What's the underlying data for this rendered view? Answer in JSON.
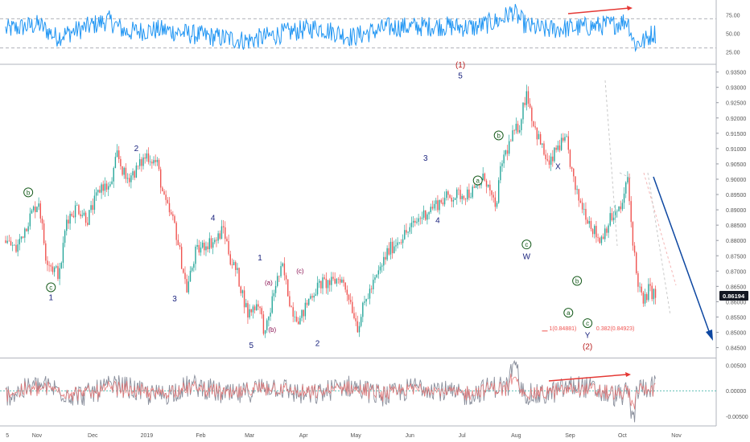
{
  "colors": {
    "rsi": "#2196f3",
    "bull": "#26a69a",
    "bear": "#ef5350",
    "wave_impulse": "#1a237e",
    "wave_corrective": "#1b5e20",
    "wave_minor": "#880e4f",
    "wave_major": "#b71c1c",
    "arrow": "#0d47a1",
    "diverge": "#e53935",
    "grid": "#e0e0e0",
    "axis_text": "#555555",
    "price_badge": "#131722"
  },
  "chart_data": [
    {
      "type": "line",
      "panel": "rsi",
      "y_ticks": [
        "25.00",
        "50.00",
        "75.00"
      ],
      "y_tick_values": [
        25,
        50,
        75
      ],
      "ylim": [
        10,
        90
      ],
      "levels": [
        30,
        70
      ]
    },
    {
      "type": "candlestick",
      "panel": "price",
      "y_ticks": [
        "0.84500",
        "0.85000",
        "0.85500",
        "0.86000",
        "0.86500",
        "0.87000",
        "0.87500",
        "0.88000",
        "0.88500",
        "0.89000",
        "0.89500",
        "0.90000",
        "0.90500",
        "0.91000",
        "0.91500",
        "0.92000",
        "0.92500",
        "0.93000",
        "0.93500"
      ],
      "y_tick_values": [
        0.845,
        0.85,
        0.855,
        0.86,
        0.865,
        0.87,
        0.875,
        0.88,
        0.885,
        0.89,
        0.895,
        0.9,
        0.905,
        0.91,
        0.915,
        0.92,
        0.925,
        0.93,
        0.935
      ],
      "ylim": [
        0.842,
        0.937
      ],
      "last_price": "0.86194",
      "last_price_value": 0.86194,
      "x_ticks": [
        "5",
        "Nov",
        "Dec",
        "2019",
        "Feb",
        "Mar",
        "Apr",
        "May",
        "Jun",
        "Jul",
        "Aug",
        "Sep",
        "Oct",
        "Nov"
      ],
      "x_tick_day": [
        -8,
        9,
        41,
        72,
        103,
        131,
        162,
        192,
        223,
        253,
        284,
        315,
        345,
        376
      ],
      "anchors": [
        {
          "d": -9,
          "p": 0.88
        },
        {
          "d": -3,
          "p": 0.877
        },
        {
          "d": 2,
          "p": 0.884
        },
        {
          "d": 6,
          "p": 0.889
        },
        {
          "d": 10,
          "p": 0.893
        },
        {
          "d": 14,
          "p": 0.875
        },
        {
          "d": 18,
          "p": 0.871
        },
        {
          "d": 22,
          "p": 0.869
        },
        {
          "d": 26,
          "p": 0.887
        },
        {
          "d": 32,
          "p": 0.891
        },
        {
          "d": 38,
          "p": 0.887
        },
        {
          "d": 46,
          "p": 0.898
        },
        {
          "d": 51,
          "p": 0.897
        },
        {
          "d": 55,
          "p": 0.908
        },
        {
          "d": 60,
          "p": 0.9
        },
        {
          "d": 66,
          "p": 0.903
        },
        {
          "d": 72,
          "p": 0.908
        },
        {
          "d": 78,
          "p": 0.905
        },
        {
          "d": 82,
          "p": 0.893
        },
        {
          "d": 88,
          "p": 0.885
        },
        {
          "d": 95,
          "p": 0.864
        },
        {
          "d": 100,
          "p": 0.876
        },
        {
          "d": 106,
          "p": 0.879
        },
        {
          "d": 112,
          "p": 0.88
        },
        {
          "d": 116,
          "p": 0.884
        },
        {
          "d": 120,
          "p": 0.874
        },
        {
          "d": 124,
          "p": 0.869
        },
        {
          "d": 130,
          "p": 0.856
        },
        {
          "d": 136,
          "p": 0.86
        },
        {
          "d": 140,
          "p": 0.849
        },
        {
          "d": 146,
          "p": 0.866
        },
        {
          "d": 150,
          "p": 0.871
        },
        {
          "d": 155,
          "p": 0.858
        },
        {
          "d": 160,
          "p": 0.854
        },
        {
          "d": 166,
          "p": 0.862
        },
        {
          "d": 172,
          "p": 0.866
        },
        {
          "d": 178,
          "p": 0.866
        },
        {
          "d": 183,
          "p": 0.868
        },
        {
          "d": 188,
          "p": 0.862
        },
        {
          "d": 193,
          "p": 0.852
        },
        {
          "d": 198,
          "p": 0.861
        },
        {
          "d": 204,
          "p": 0.868
        },
        {
          "d": 210,
          "p": 0.876
        },
        {
          "d": 216,
          "p": 0.88
        },
        {
          "d": 222,
          "p": 0.883
        },
        {
          "d": 228,
          "p": 0.887
        },
        {
          "d": 236,
          "p": 0.891
        },
        {
          "d": 244,
          "p": 0.894
        },
        {
          "d": 252,
          "p": 0.895
        },
        {
          "d": 260,
          "p": 0.896
        },
        {
          "d": 266,
          "p": 0.901
        },
        {
          "d": 272,
          "p": 0.89
        },
        {
          "d": 276,
          "p": 0.906
        },
        {
          "d": 282,
          "p": 0.914
        },
        {
          "d": 286,
          "p": 0.918
        },
        {
          "d": 290,
          "p": 0.929
        },
        {
          "d": 294,
          "p": 0.918
        },
        {
          "d": 299,
          "p": 0.91
        },
        {
          "d": 303,
          "p": 0.904
        },
        {
          "d": 308,
          "p": 0.911
        },
        {
          "d": 313,
          "p": 0.912
        },
        {
          "d": 318,
          "p": 0.896
        },
        {
          "d": 323,
          "p": 0.89
        },
        {
          "d": 328,
          "p": 0.884
        },
        {
          "d": 332,
          "p": 0.88
        },
        {
          "d": 338,
          "p": 0.887
        },
        {
          "d": 344,
          "p": 0.89
        },
        {
          "d": 348,
          "p": 0.9
        },
        {
          "d": 350,
          "p": 0.886
        },
        {
          "d": 353,
          "p": 0.869
        },
        {
          "d": 357,
          "p": 0.859
        },
        {
          "d": 360,
          "p": 0.864
        },
        {
          "d": 364,
          "p": 0.862
        }
      ],
      "rsi_anchors": [
        {
          "d": -9,
          "v": 55
        },
        {
          "d": 10,
          "v": 62
        },
        {
          "d": 20,
          "v": 45
        },
        {
          "d": 50,
          "v": 68
        },
        {
          "d": 60,
          "v": 52
        },
        {
          "d": 80,
          "v": 55
        },
        {
          "d": 100,
          "v": 48
        },
        {
          "d": 130,
          "v": 40
        },
        {
          "d": 150,
          "v": 50
        },
        {
          "d": 170,
          "v": 58
        },
        {
          "d": 190,
          "v": 45
        },
        {
          "d": 210,
          "v": 58
        },
        {
          "d": 240,
          "v": 60
        },
        {
          "d": 260,
          "v": 58
        },
        {
          "d": 275,
          "v": 68
        },
        {
          "d": 282,
          "v": 80
        },
        {
          "d": 290,
          "v": 60
        },
        {
          "d": 300,
          "v": 55
        },
        {
          "d": 320,
          "v": 58
        },
        {
          "d": 340,
          "v": 62
        },
        {
          "d": 348,
          "v": 68
        },
        {
          "d": 352,
          "v": 35
        },
        {
          "d": 358,
          "v": 40
        },
        {
          "d": 362,
          "v": 50
        }
      ],
      "wave_labels": [
        {
          "t": "b",
          "d": 4,
          "p": 0.8957,
          "circle": true,
          "c": "wave_corrective"
        },
        {
          "t": "c",
          "d": 17,
          "p": 0.8647,
          "circle": true,
          "c": "wave_corrective"
        },
        {
          "t": "1",
          "d": 17,
          "p": 0.8615,
          "c": "wave_impulse"
        },
        {
          "t": "2",
          "d": 66,
          "p": 0.9102,
          "c": "wave_impulse"
        },
        {
          "t": "3",
          "d": 88,
          "p": 0.8612,
          "c": "wave_impulse"
        },
        {
          "t": "4",
          "d": 110,
          "p": 0.8875,
          "c": "wave_impulse"
        },
        {
          "t": "5",
          "d": 132,
          "p": 0.846,
          "c": "wave_impulse"
        },
        {
          "t": "1",
          "d": 137,
          "p": 0.8745,
          "c": "wave_impulse"
        },
        {
          "t": "(a)",
          "d": 142,
          "p": 0.8665,
          "c": "wave_minor"
        },
        {
          "t": "(b)",
          "d": 144,
          "p": 0.8512,
          "c": "wave_minor"
        },
        {
          "t": "(c)",
          "d": 160,
          "p": 0.8703,
          "c": "wave_minor"
        },
        {
          "t": "2",
          "d": 170,
          "p": 0.8466,
          "c": "wave_impulse"
        },
        {
          "t": "3",
          "d": 232,
          "p": 0.9071,
          "c": "wave_impulse"
        },
        {
          "t": "4",
          "d": 239,
          "p": 0.8868,
          "c": "wave_impulse"
        },
        {
          "t": "5",
          "d": 252,
          "p": 0.934,
          "c": "wave_impulse"
        },
        {
          "t": "(1)",
          "d": 252,
          "p": 0.9375,
          "c": "wave_major"
        },
        {
          "t": "b",
          "d": 274,
          "p": 0.9143,
          "circle": true,
          "c": "wave_corrective"
        },
        {
          "t": "a",
          "d": 262,
          "p": 0.8996,
          "circle": true,
          "c": "wave_corrective"
        },
        {
          "t": "c",
          "d": 290,
          "p": 0.8787,
          "circle": true,
          "c": "wave_corrective"
        },
        {
          "t": "W",
          "d": 290,
          "p": 0.875,
          "c": "wave_impulse"
        },
        {
          "t": "X",
          "d": 308,
          "p": 0.9043,
          "c": "wave_impulse"
        },
        {
          "t": "b",
          "d": 319,
          "p": 0.8668,
          "circle": true,
          "c": "wave_corrective"
        },
        {
          "t": "a",
          "d": 314,
          "p": 0.8564,
          "circle": true,
          "c": "wave_corrective"
        },
        {
          "t": "c",
          "d": 325,
          "p": 0.853,
          "circle": true,
          "c": "wave_corrective"
        },
        {
          "t": "Y",
          "d": 325,
          "p": 0.8492,
          "c": "wave_impulse"
        },
        {
          "t": "(2)",
          "d": 325,
          "p": 0.8455,
          "c": "wave_major"
        }
      ],
      "fib_labels": [
        {
          "t": "1(0.84881)",
          "d": 303,
          "p": 0.8507
        },
        {
          "t": "0.382(0.84923)",
          "d": 330,
          "p": 0.8507
        }
      ]
    },
    {
      "type": "line",
      "panel": "oscillator",
      "y_ticks": [
        "0.00500",
        "0.00000",
        "-0.00500"
      ],
      "y_tick_values": [
        0.005,
        0,
        -0.005
      ],
      "ylim": [
        -0.0066,
        0.0062
      ]
    }
  ]
}
